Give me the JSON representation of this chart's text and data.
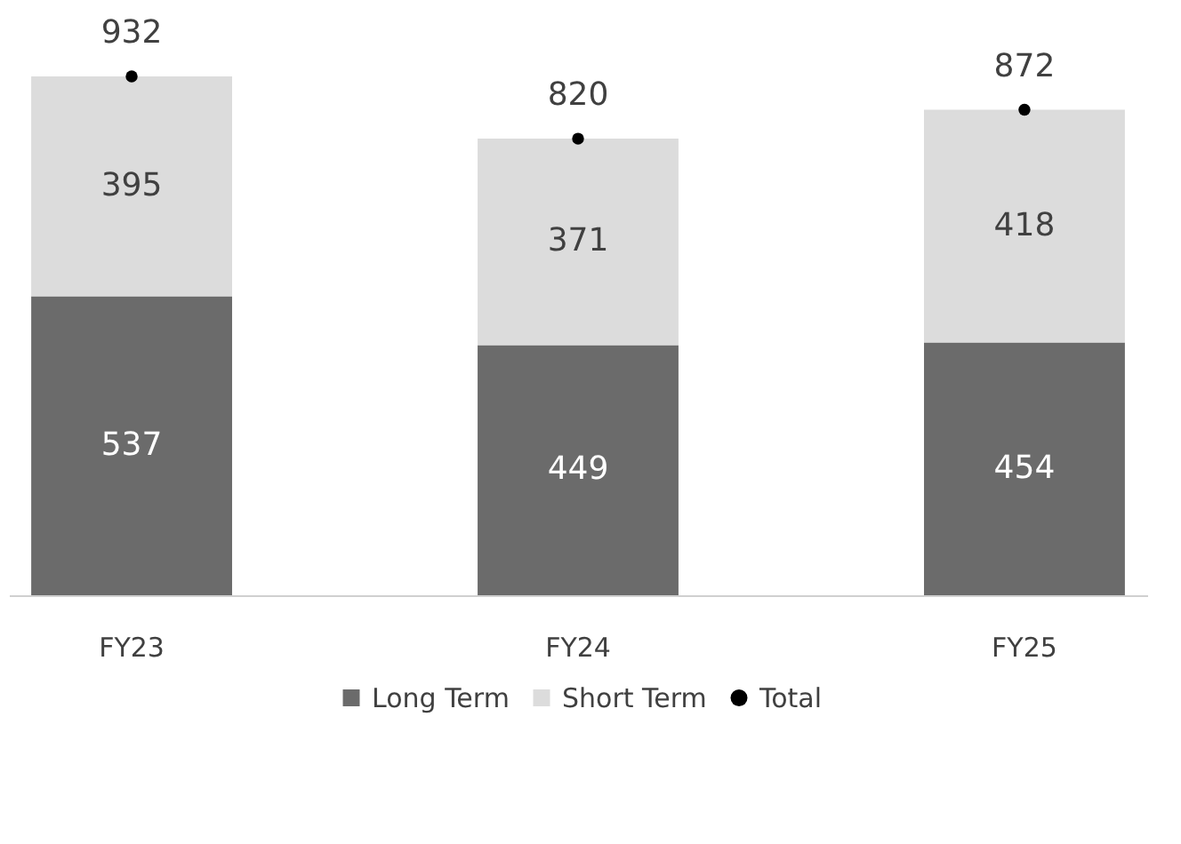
{
  "chart_data": {
    "type": "bar",
    "stacked": true,
    "categories": [
      "FY23",
      "FY24",
      "FY25"
    ],
    "series": [
      {
        "name": "Long Term",
        "color": "#6b6b6b",
        "values": [
          537,
          449,
          454
        ]
      },
      {
        "name": "Short Term",
        "color": "#dcdcdc",
        "values": [
          395,
          371,
          418
        ]
      },
      {
        "name": "Total",
        "type": "scatter",
        "color": "#000000",
        "marker": "circle",
        "values": [
          932,
          820,
          872
        ]
      }
    ],
    "data_labels": true,
    "legend": "bottom",
    "grid": false
  }
}
